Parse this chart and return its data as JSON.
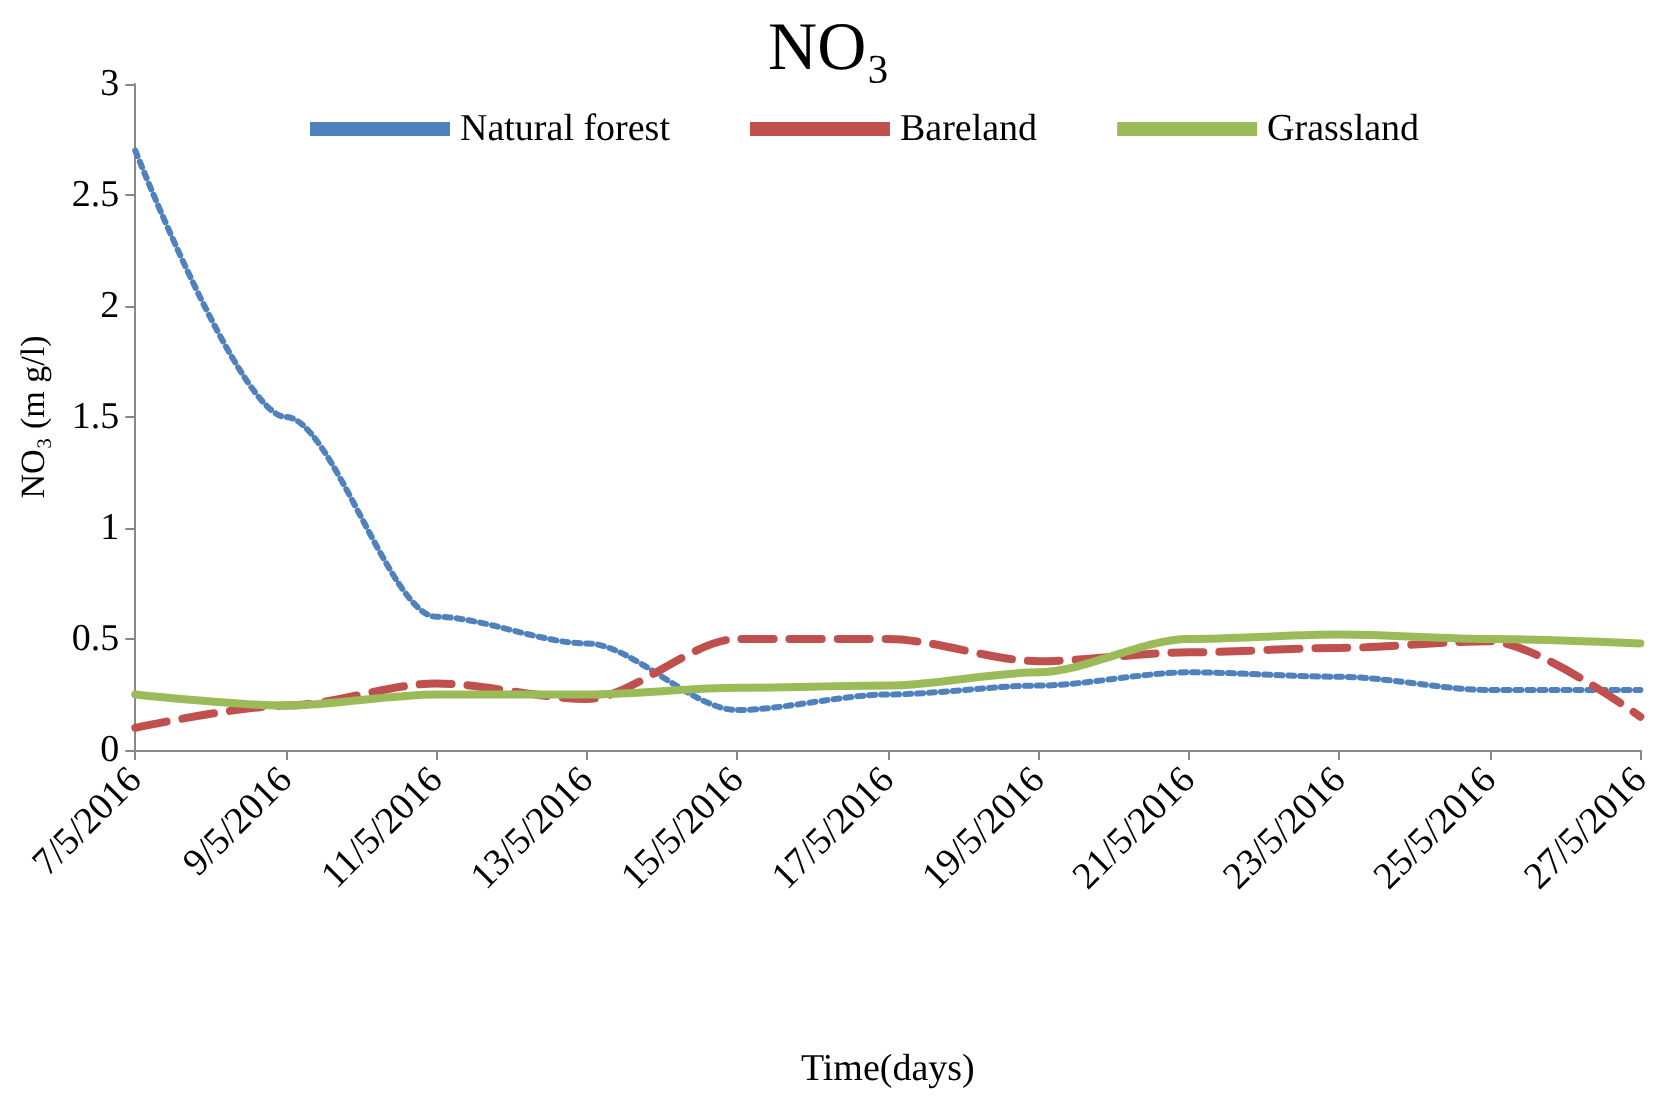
{
  "chart_data": {
    "type": "line",
    "title": "NO₃",
    "xlabel": "Time(days)",
    "ylabel": "NO₃ (m g/l)",
    "categories": [
      "7/5/2016",
      "9/5/2016",
      "11/5/2016",
      "13/5/2016",
      "15/5/2016",
      "17/5/2016",
      "19/5/2016",
      "21/5/2016",
      "23/5/2016",
      "25/5/2016",
      "27/5/2016"
    ],
    "series": [
      {
        "name": "Natural forest",
        "color": "#4f81bd",
        "line_style": "dotted",
        "values": [
          2.7,
          1.5,
          0.6,
          0.48,
          0.18,
          0.25,
          0.29,
          0.35,
          0.33,
          0.27,
          0.27
        ]
      },
      {
        "name": "Bareland",
        "color": "#c0504d",
        "line_style": "dashed",
        "values": [
          0.1,
          0.2,
          0.3,
          0.23,
          0.5,
          0.5,
          0.4,
          0.44,
          0.46,
          0.49,
          0.15
        ]
      },
      {
        "name": "Grassland",
        "color": "#9bbb59",
        "line_style": "solid",
        "values": [
          0.25,
          0.2,
          0.25,
          0.25,
          0.28,
          0.29,
          0.35,
          0.5,
          0.52,
          0.5,
          0.48
        ]
      }
    ],
    "ylim": [
      0,
      3
    ],
    "yticks": [
      0,
      0.5,
      1,
      1.5,
      2,
      2.5,
      3
    ],
    "grid": false,
    "legend": "top",
    "marker": "none"
  }
}
